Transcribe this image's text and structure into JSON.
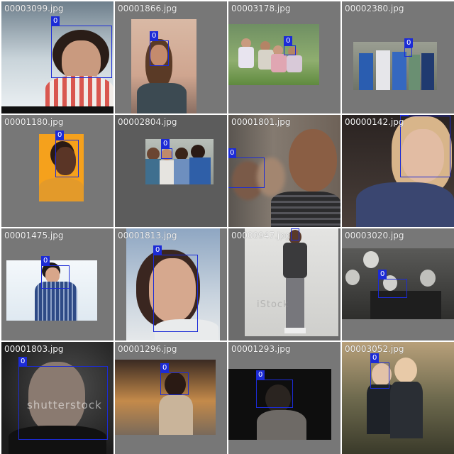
{
  "colors": {
    "tile_bg": "#777777",
    "box": "#1c2bd6",
    "label_text": "#f2f2f2"
  },
  "tiles": [
    {
      "filename": "00003099.jpg",
      "class_label": "0"
    },
    {
      "filename": "00001866.jpg",
      "class_label": "0"
    },
    {
      "filename": "00003178.jpg",
      "class_label": "0"
    },
    {
      "filename": "00002380.jpg",
      "class_label": "0"
    },
    {
      "filename": "00001180.jpg",
      "class_label": "0"
    },
    {
      "filename": "00002804.jpg",
      "class_label": "0"
    },
    {
      "filename": "00001801.jpg",
      "class_label": "0"
    },
    {
      "filename": "00000142.jpg",
      "class_label": "0"
    },
    {
      "filename": "00001475.jpg",
      "class_label": "0"
    },
    {
      "filename": "00001813.jpg",
      "class_label": "0"
    },
    {
      "filename": "00000947.jpg",
      "class_label": "0"
    },
    {
      "filename": "00003020.jpg",
      "class_label": "0"
    },
    {
      "filename": "00001803.jpg",
      "class_label": "0"
    },
    {
      "filename": "00001296.jpg",
      "class_label": "0"
    },
    {
      "filename": "00001293.jpg",
      "class_label": "0"
    },
    {
      "filename": "00003052.jpg",
      "class_label": "0"
    }
  ]
}
